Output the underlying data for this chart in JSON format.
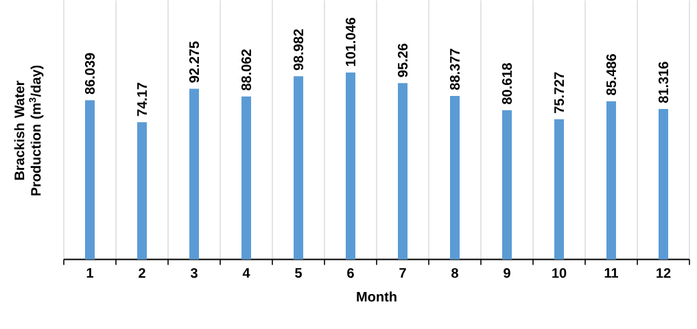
{
  "chart_data": {
    "type": "bar",
    "xlabel": "Month",
    "ylabel": "Brackish Water Production (m$^{3}$/day)",
    "categories": [
      "1",
      "2",
      "3",
      "4",
      "5",
      "6",
      "7",
      "8",
      "9",
      "10",
      "11",
      "12"
    ],
    "values": [
      86.039,
      74.17,
      92.275,
      88.062,
      98.982,
      101.046,
      95.26,
      88.377,
      80.618,
      75.727,
      85.486,
      81.316
    ],
    "color": "#5b9bd5",
    "ylim": [
      0,
      140
    ],
    "grid": "x",
    "data_labels": true
  }
}
